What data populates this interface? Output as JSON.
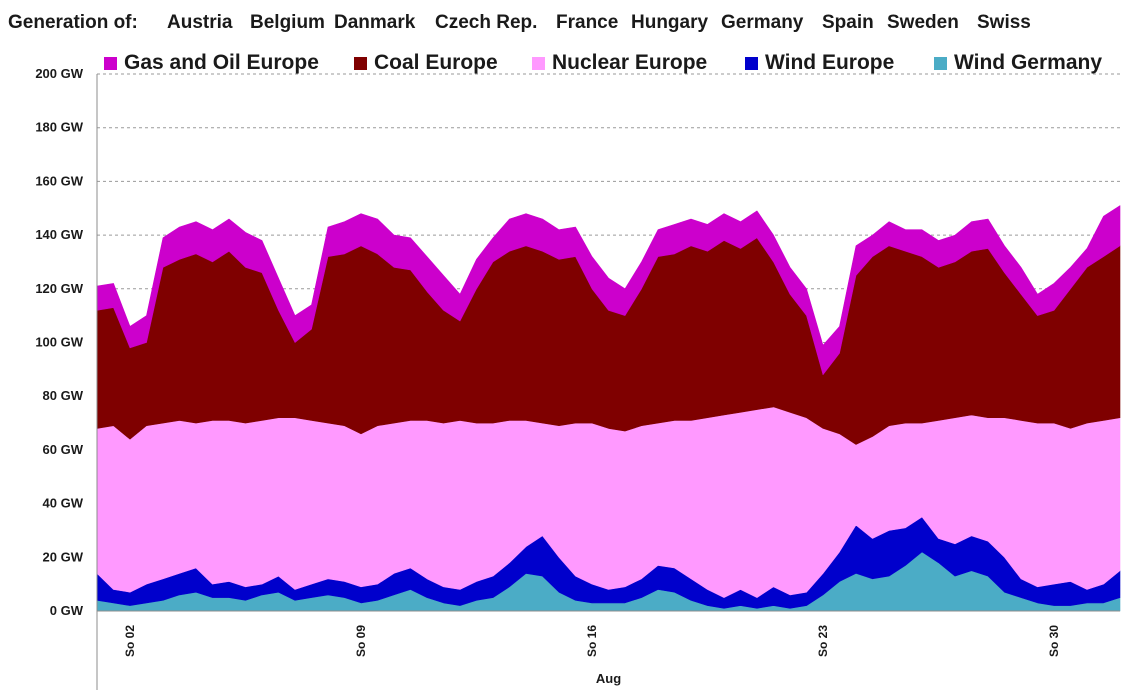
{
  "header": {
    "label": "Generation of:",
    "countries": [
      "Austria",
      "Belgium",
      "Danmark",
      "Czech Rep.",
      "France",
      "Hungary",
      "Germany",
      "Spain",
      "Sweden",
      "Swiss"
    ]
  },
  "chart_data": {
    "type": "area",
    "stacked": true,
    "title": "",
    "xlabel": "Aug",
    "ylabel": "",
    "ylim": [
      0,
      200
    ],
    "yticks": [
      "0 GW",
      "20 GW",
      "40 GW",
      "60 GW",
      "80 GW",
      "100 GW",
      "120 GW",
      "140 GW",
      "160 GW",
      "180 GW",
      "200 GW"
    ],
    "xticks": [
      "So 02",
      "So 09",
      "So 16",
      "So 23",
      "So 30"
    ],
    "grid": "horizontal dashed",
    "legend": "top",
    "x_unit": "days since Aug 01 00:00 (sampled every 12h)",
    "x": [
      0.0,
      0.5,
      1.0,
      1.5,
      2.0,
      2.5,
      3.0,
      3.5,
      4.0,
      4.5,
      5.0,
      5.5,
      6.0,
      6.5,
      7.0,
      7.5,
      8.0,
      8.5,
      9.0,
      9.5,
      10.0,
      10.5,
      11.0,
      11.5,
      12.0,
      12.5,
      13.0,
      13.5,
      14.0,
      14.5,
      15.0,
      15.5,
      16.0,
      16.5,
      17.0,
      17.5,
      18.0,
      18.5,
      19.0,
      19.5,
      20.0,
      20.5,
      21.0,
      21.5,
      22.0,
      22.5,
      23.0,
      23.5,
      24.0,
      24.5,
      25.0,
      25.5,
      26.0,
      26.5,
      27.0,
      27.5,
      28.0,
      28.5,
      29.0,
      29.5,
      30.0,
      30.5,
      31.0
    ],
    "series": [
      {
        "name": "Wind Germany",
        "color": "#4bacc6",
        "values": [
          4,
          3,
          2,
          3,
          4,
          6,
          7,
          5,
          5,
          4,
          6,
          7,
          4,
          5,
          6,
          5,
          3,
          4,
          6,
          8,
          5,
          3,
          2,
          4,
          5,
          9,
          14,
          13,
          7,
          4,
          3,
          3,
          3,
          5,
          8,
          7,
          4,
          2,
          1,
          2,
          1,
          2,
          1,
          2,
          6,
          11,
          14,
          12,
          13,
          17,
          22,
          18,
          13,
          15,
          13,
          7,
          5,
          3,
          2,
          2,
          3,
          3,
          5
        ]
      },
      {
        "name": "Wind Europe",
        "color": "#0000cc",
        "values": [
          14,
          8,
          7,
          10,
          12,
          14,
          16,
          10,
          11,
          9,
          10,
          13,
          8,
          10,
          12,
          11,
          9,
          10,
          14,
          16,
          12,
          9,
          8,
          11,
          13,
          18,
          24,
          28,
          20,
          13,
          10,
          8,
          9,
          12,
          17,
          16,
          12,
          8,
          5,
          8,
          5,
          9,
          6,
          7,
          14,
          22,
          32,
          27,
          30,
          31,
          35,
          27,
          25,
          28,
          26,
          20,
          12,
          9,
          10,
          11,
          8,
          10,
          15
        ]
      },
      {
        "name": "Nuclear Europe",
        "color": "#ff99ff",
        "values": [
          68,
          69,
          64,
          69,
          70,
          71,
          70,
          71,
          71,
          70,
          71,
          72,
          72,
          71,
          70,
          69,
          66,
          69,
          70,
          71,
          71,
          70,
          71,
          70,
          70,
          71,
          71,
          70,
          69,
          70,
          70,
          68,
          67,
          69,
          70,
          71,
          71,
          72,
          73,
          74,
          75,
          76,
          74,
          72,
          68,
          66,
          62,
          65,
          69,
          70,
          70,
          71,
          72,
          73,
          72,
          72,
          71,
          70,
          70,
          68,
          70,
          71,
          72
        ]
      },
      {
        "name": "Coal Europe",
        "color": "#7f0000",
        "values": [
          112,
          113,
          98,
          100,
          128,
          131,
          133,
          130,
          134,
          128,
          126,
          112,
          100,
          105,
          132,
          133,
          136,
          133,
          128,
          127,
          119,
          112,
          108,
          120,
          130,
          134,
          136,
          134,
          131,
          132,
          120,
          112,
          110,
          120,
          132,
          133,
          136,
          134,
          138,
          135,
          139,
          130,
          118,
          110,
          88,
          96,
          125,
          132,
          136,
          134,
          132,
          128,
          130,
          134,
          135,
          126,
          118,
          110,
          112,
          120,
          128,
          132,
          136
        ]
      },
      {
        "name": "Gas and Oil Europe",
        "color": "#cc00cc",
        "values": [
          121,
          122,
          106,
          110,
          139,
          143,
          145,
          142,
          146,
          141,
          138,
          124,
          110,
          114,
          143,
          145,
          148,
          146,
          140,
          139,
          132,
          125,
          118,
          131,
          139,
          146,
          148,
          146,
          142,
          143,
          132,
          124,
          120,
          130,
          142,
          144,
          146,
          144,
          148,
          145,
          149,
          140,
          128,
          120,
          99,
          106,
          136,
          140,
          145,
          142,
          142,
          138,
          140,
          145,
          146,
          136,
          128,
          118,
          122,
          128,
          135,
          147,
          151
        ]
      }
    ]
  }
}
